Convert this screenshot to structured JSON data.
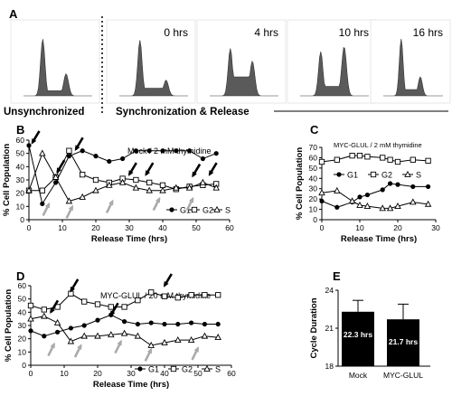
{
  "panel_a": {
    "label": "A",
    "histograms": [
      {
        "time": "",
        "caption": "Unsynchronized"
      },
      {
        "time": "0 hrs"
      },
      {
        "time": "4 hrs"
      },
      {
        "time": "10 hrs"
      },
      {
        "time": "16 hrs"
      }
    ],
    "release_caption": "Synchronization & Release"
  },
  "chart_data": [
    {
      "panel": "B",
      "type": "line",
      "title": "Mock / 2 mM thymidine",
      "xlabel": "Release Time (hrs)",
      "ylabel": "% Cell Population",
      "xlim": [
        0,
        60
      ],
      "ylim": [
        0,
        60
      ],
      "xticks": [
        0,
        10,
        20,
        30,
        40,
        50,
        60
      ],
      "yticks": [
        0,
        10,
        20,
        30,
        40,
        50,
        60
      ],
      "legend": "bottom-right",
      "series": [
        {
          "name": "G1",
          "marker": "circle",
          "x": [
            0,
            4,
            8,
            12,
            16,
            20,
            24,
            28,
            32,
            36,
            40,
            44,
            48,
            52,
            56
          ],
          "y": [
            56,
            12,
            28,
            48,
            52,
            48,
            44,
            46,
            52,
            52,
            52,
            52,
            52,
            46,
            50
          ]
        },
        {
          "name": "G2",
          "marker": "square",
          "x": [
            0,
            4,
            8,
            12,
            16,
            20,
            24,
            28,
            32,
            36,
            40,
            44,
            48,
            52,
            56
          ],
          "y": [
            22,
            22,
            32,
            52,
            34,
            30,
            28,
            31,
            30,
            28,
            26,
            23,
            25,
            26,
            27
          ]
        },
        {
          "name": "S",
          "marker": "triangle",
          "x": [
            0,
            4,
            8,
            12,
            16,
            20,
            24,
            28,
            32,
            36,
            40,
            44,
            48,
            52,
            56
          ],
          "y": [
            22,
            50,
            32,
            14,
            17,
            22,
            26,
            28,
            24,
            22,
            22,
            24,
            24,
            28,
            24
          ]
        }
      ]
    },
    {
      "panel": "C",
      "type": "line",
      "title": "MYC-GLUL / 2 mM thymidine",
      "xlabel": "Release Time (hrs)",
      "ylabel": "% Cell Population",
      "xlim": [
        0,
        30
      ],
      "ylim": [
        0,
        70
      ],
      "xticks": [
        0,
        10,
        20,
        30
      ],
      "yticks": [
        0,
        10,
        20,
        30,
        40,
        50,
        60,
        70
      ],
      "legend": "center",
      "series": [
        {
          "name": "G1",
          "marker": "circle",
          "x": [
            0,
            4,
            8,
            10,
            12,
            16,
            18,
            20,
            24,
            28
          ],
          "y": [
            18,
            12,
            17,
            22,
            24,
            29,
            35,
            34,
            32,
            32
          ]
        },
        {
          "name": "G2",
          "marker": "square",
          "x": [
            0,
            4,
            8,
            10,
            12,
            16,
            18,
            20,
            24,
            28
          ],
          "y": [
            56,
            58,
            62,
            62,
            61,
            60,
            58,
            56,
            58,
            57
          ]
        },
        {
          "name": "S",
          "marker": "triangle",
          "x": [
            0,
            4,
            8,
            10,
            12,
            16,
            18,
            20,
            24,
            28
          ],
          "y": [
            26,
            28,
            18,
            14,
            13,
            11,
            11,
            13,
            17,
            15
          ]
        }
      ]
    },
    {
      "panel": "D",
      "type": "line",
      "title": "MYC-GLUL / 20 mM thymidine",
      "xlabel": "Release Time (hrs)",
      "ylabel": "% Cell Population",
      "xlim": [
        0,
        60
      ],
      "ylim": [
        0,
        60
      ],
      "xticks": [
        0,
        10,
        20,
        30,
        40,
        50,
        60
      ],
      "yticks": [
        0,
        10,
        20,
        30,
        40,
        50,
        60
      ],
      "legend": "bottom-right",
      "series": [
        {
          "name": "G1",
          "marker": "circle",
          "x": [
            0,
            4,
            8,
            12,
            16,
            20,
            24,
            28,
            32,
            36,
            40,
            44,
            48,
            52,
            56
          ],
          "y": [
            26,
            22,
            25,
            28,
            30,
            34,
            38,
            33,
            31,
            32,
            31,
            31,
            32,
            31,
            31
          ]
        },
        {
          "name": "G2",
          "marker": "square",
          "x": [
            0,
            4,
            8,
            12,
            16,
            20,
            24,
            28,
            32,
            36,
            40,
            44,
            48,
            52,
            56
          ],
          "y": [
            45,
            42,
            44,
            54,
            48,
            46,
            44,
            44,
            49,
            55,
            52,
            51,
            53,
            53,
            53
          ]
        },
        {
          "name": "S",
          "marker": "triangle",
          "x": [
            0,
            4,
            8,
            12,
            16,
            20,
            24,
            28,
            32,
            36,
            40,
            44,
            48,
            52,
            56
          ],
          "y": [
            35,
            37,
            32,
            18,
            22,
            22,
            23,
            24,
            22,
            15,
            17,
            19,
            19,
            22,
            21
          ]
        }
      ]
    },
    {
      "panel": "E",
      "type": "bar",
      "ylabel": "Cycle Duration",
      "ylim": [
        18,
        24
      ],
      "yticks": [
        18,
        21,
        24
      ],
      "categories": [
        "Mock",
        "MYC-GLUL"
      ],
      "values": [
        22.3,
        21.7
      ],
      "errors": [
        0.9,
        1.2
      ],
      "data_labels": [
        "22.3 hrs",
        "21.7 hrs"
      ]
    }
  ]
}
